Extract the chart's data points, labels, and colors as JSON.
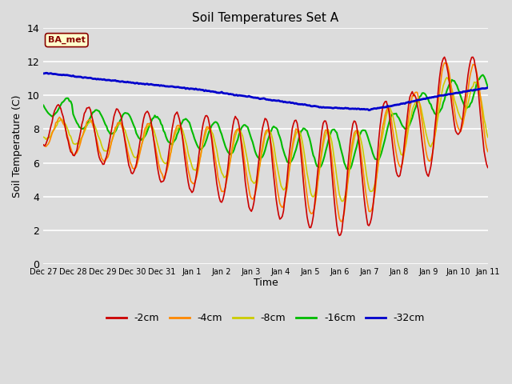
{
  "title": "Soil Temperatures Set A",
  "xlabel": "Time",
  "ylabel": "Soil Temperature (C)",
  "ylim": [
    0,
    14
  ],
  "background_color": "#dcdcdc",
  "series": {
    "-2cm": {
      "color": "#cc0000",
      "lw": 1.2
    },
    "-4cm": {
      "color": "#ff8800",
      "lw": 1.2
    },
    "-8cm": {
      "color": "#cccc00",
      "lw": 1.2
    },
    "-16cm": {
      "color": "#00bb00",
      "lw": 1.5
    },
    "-32cm": {
      "color": "#0000cc",
      "lw": 2.0
    }
  },
  "annotation_label": "BA_met",
  "annotation_color": "#880000",
  "annotation_bg": "#ffffcc",
  "tick_labels": [
    "Dec 27",
    "Dec 28",
    "Dec 29",
    "Dec 30",
    "Dec 31",
    "Jan 1",
    "Jan 2",
    "Jan 3",
    "Jan 4",
    "Jan 5",
    "Jan 6",
    "Jan 7",
    "Jan 8",
    "Jan 9",
    "Jan 10",
    "Jan 11"
  ]
}
